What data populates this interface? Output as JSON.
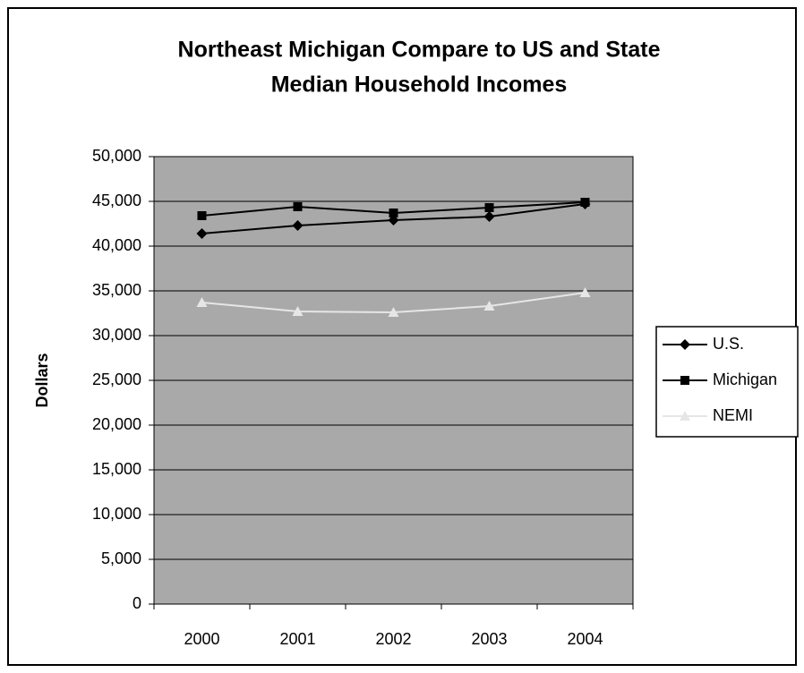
{
  "chart_data": {
    "type": "line",
    "title": [
      "Northeast Michigan  Compare to US and State",
      "Median Household Incomes"
    ],
    "y_label": "Dollars",
    "categories": [
      "2000",
      "2001",
      "2002",
      "2003",
      "2004"
    ],
    "series": [
      {
        "name": "U.S.",
        "color": "#000000",
        "marker": "diamond",
        "values": [
          41400,
          42300,
          42900,
          43300,
          44700
        ]
      },
      {
        "name": "Michigan",
        "color": "#000000",
        "marker": "square",
        "values": [
          43400,
          44400,
          43700,
          44300,
          44900
        ]
      },
      {
        "name": "NEMI",
        "color": "#e6e6e6",
        "marker": "triangle",
        "values": [
          33700,
          32700,
          32600,
          33300,
          34800
        ]
      }
    ],
    "ylim": [
      0,
      50000
    ],
    "yticks": [
      0,
      {
        "value": 5000,
        "label": "5,000"
      },
      {
        "value": 10000,
        "label": "10,000"
      },
      {
        "value": 15000,
        "label": "15,000"
      },
      {
        "value": 20000,
        "label": "20,000"
      },
      {
        "value": 25000,
        "label": "25,000"
      },
      {
        "value": 30000,
        "label": "30,000"
      },
      {
        "value": 35000,
        "label": "35,000"
      },
      {
        "value": 40000,
        "label": "40,000"
      },
      {
        "value": 45000,
        "label": "45,000"
      },
      {
        "value": 50000,
        "label": "50,000"
      }
    ],
    "grid": true,
    "legend": "right",
    "plot_background": "#a9a9a9"
  }
}
